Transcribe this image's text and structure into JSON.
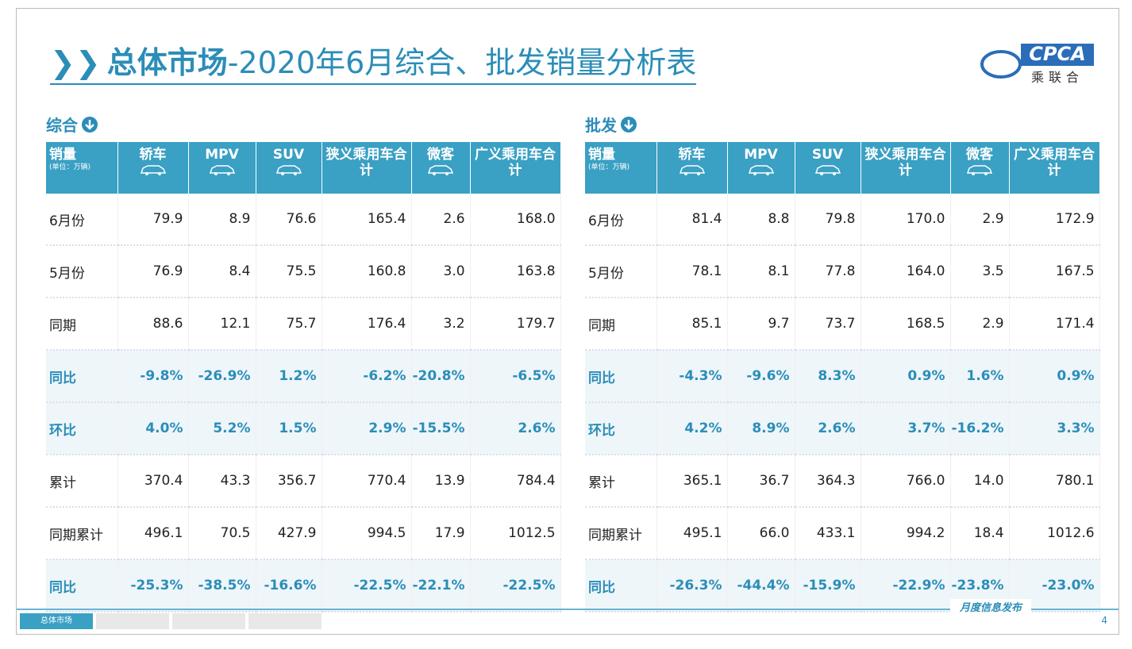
{
  "header": {
    "title_bold": "总体市场",
    "title_rest": "-2020年6月综合、批发销量分析表"
  },
  "logo": {
    "text": "CPCA",
    "subtext": "乘联合"
  },
  "tables": [
    {
      "heading": "综合",
      "columns": [
        "销量",
        "轿车",
        "MPV",
        "SUV",
        "狭义乘用车合计",
        "微客",
        "广义乘用车合计"
      ],
      "unit": "(单位：万辆)",
      "rows": [
        [
          "6月份",
          "79.9",
          "8.9",
          "76.6",
          "165.4",
          "2.6",
          "168.0"
        ],
        [
          "5月份",
          "76.9",
          "8.4",
          "75.5",
          "160.8",
          "3.0",
          "163.8"
        ],
        [
          "同期",
          "88.6",
          "12.1",
          "75.7",
          "176.4",
          "3.2",
          "179.7"
        ],
        [
          "同比",
          "-9.8%",
          "-26.9%",
          "1.2%",
          "-6.2%",
          "-20.8%",
          "-6.5%"
        ],
        [
          "环比",
          "4.0%",
          "5.2%",
          "1.5%",
          "2.9%",
          "-15.5%",
          "2.6%"
        ],
        [
          "累计",
          "370.4",
          "43.3",
          "356.7",
          "770.4",
          "13.9",
          "784.4"
        ],
        [
          "同期累计",
          "496.1",
          "70.5",
          "427.9",
          "994.5",
          "17.9",
          "1012.5"
        ],
        [
          "同比",
          "-25.3%",
          "-38.5%",
          "-16.6%",
          "-22.5%",
          "-22.1%",
          "-22.5%"
        ]
      ]
    },
    {
      "heading": "批发",
      "columns": [
        "销量",
        "轿车",
        "MPV",
        "SUV",
        "狭义乘用车合计",
        "微客",
        "广义乘用车合计"
      ],
      "unit": "(单位：万辆)",
      "rows": [
        [
          "6月份",
          "81.4",
          "8.8",
          "79.8",
          "170.0",
          "2.9",
          "172.9"
        ],
        [
          "5月份",
          "78.1",
          "8.1",
          "77.8",
          "164.0",
          "3.5",
          "167.5"
        ],
        [
          "同期",
          "85.1",
          "9.7",
          "73.7",
          "168.5",
          "2.9",
          "171.4"
        ],
        [
          "同比",
          "-4.3%",
          "-9.6%",
          "8.3%",
          "0.9%",
          "1.6%",
          "0.9%"
        ],
        [
          "环比",
          "4.2%",
          "8.9%",
          "2.6%",
          "3.7%",
          "-16.2%",
          "3.3%"
        ],
        [
          "累计",
          "365.1",
          "36.7",
          "364.3",
          "766.0",
          "14.0",
          "780.1"
        ],
        [
          "同期累计",
          "495.1",
          "66.0",
          "433.1",
          "994.2",
          "18.4",
          "1012.6"
        ],
        [
          "同比",
          "-26.3%",
          "-44.4%",
          "-15.9%",
          "-22.9%",
          "-23.8%",
          "-23.0%"
        ]
      ]
    }
  ],
  "footer": {
    "tab": "总体市场",
    "note": "月度信息发布",
    "page": "4"
  }
}
